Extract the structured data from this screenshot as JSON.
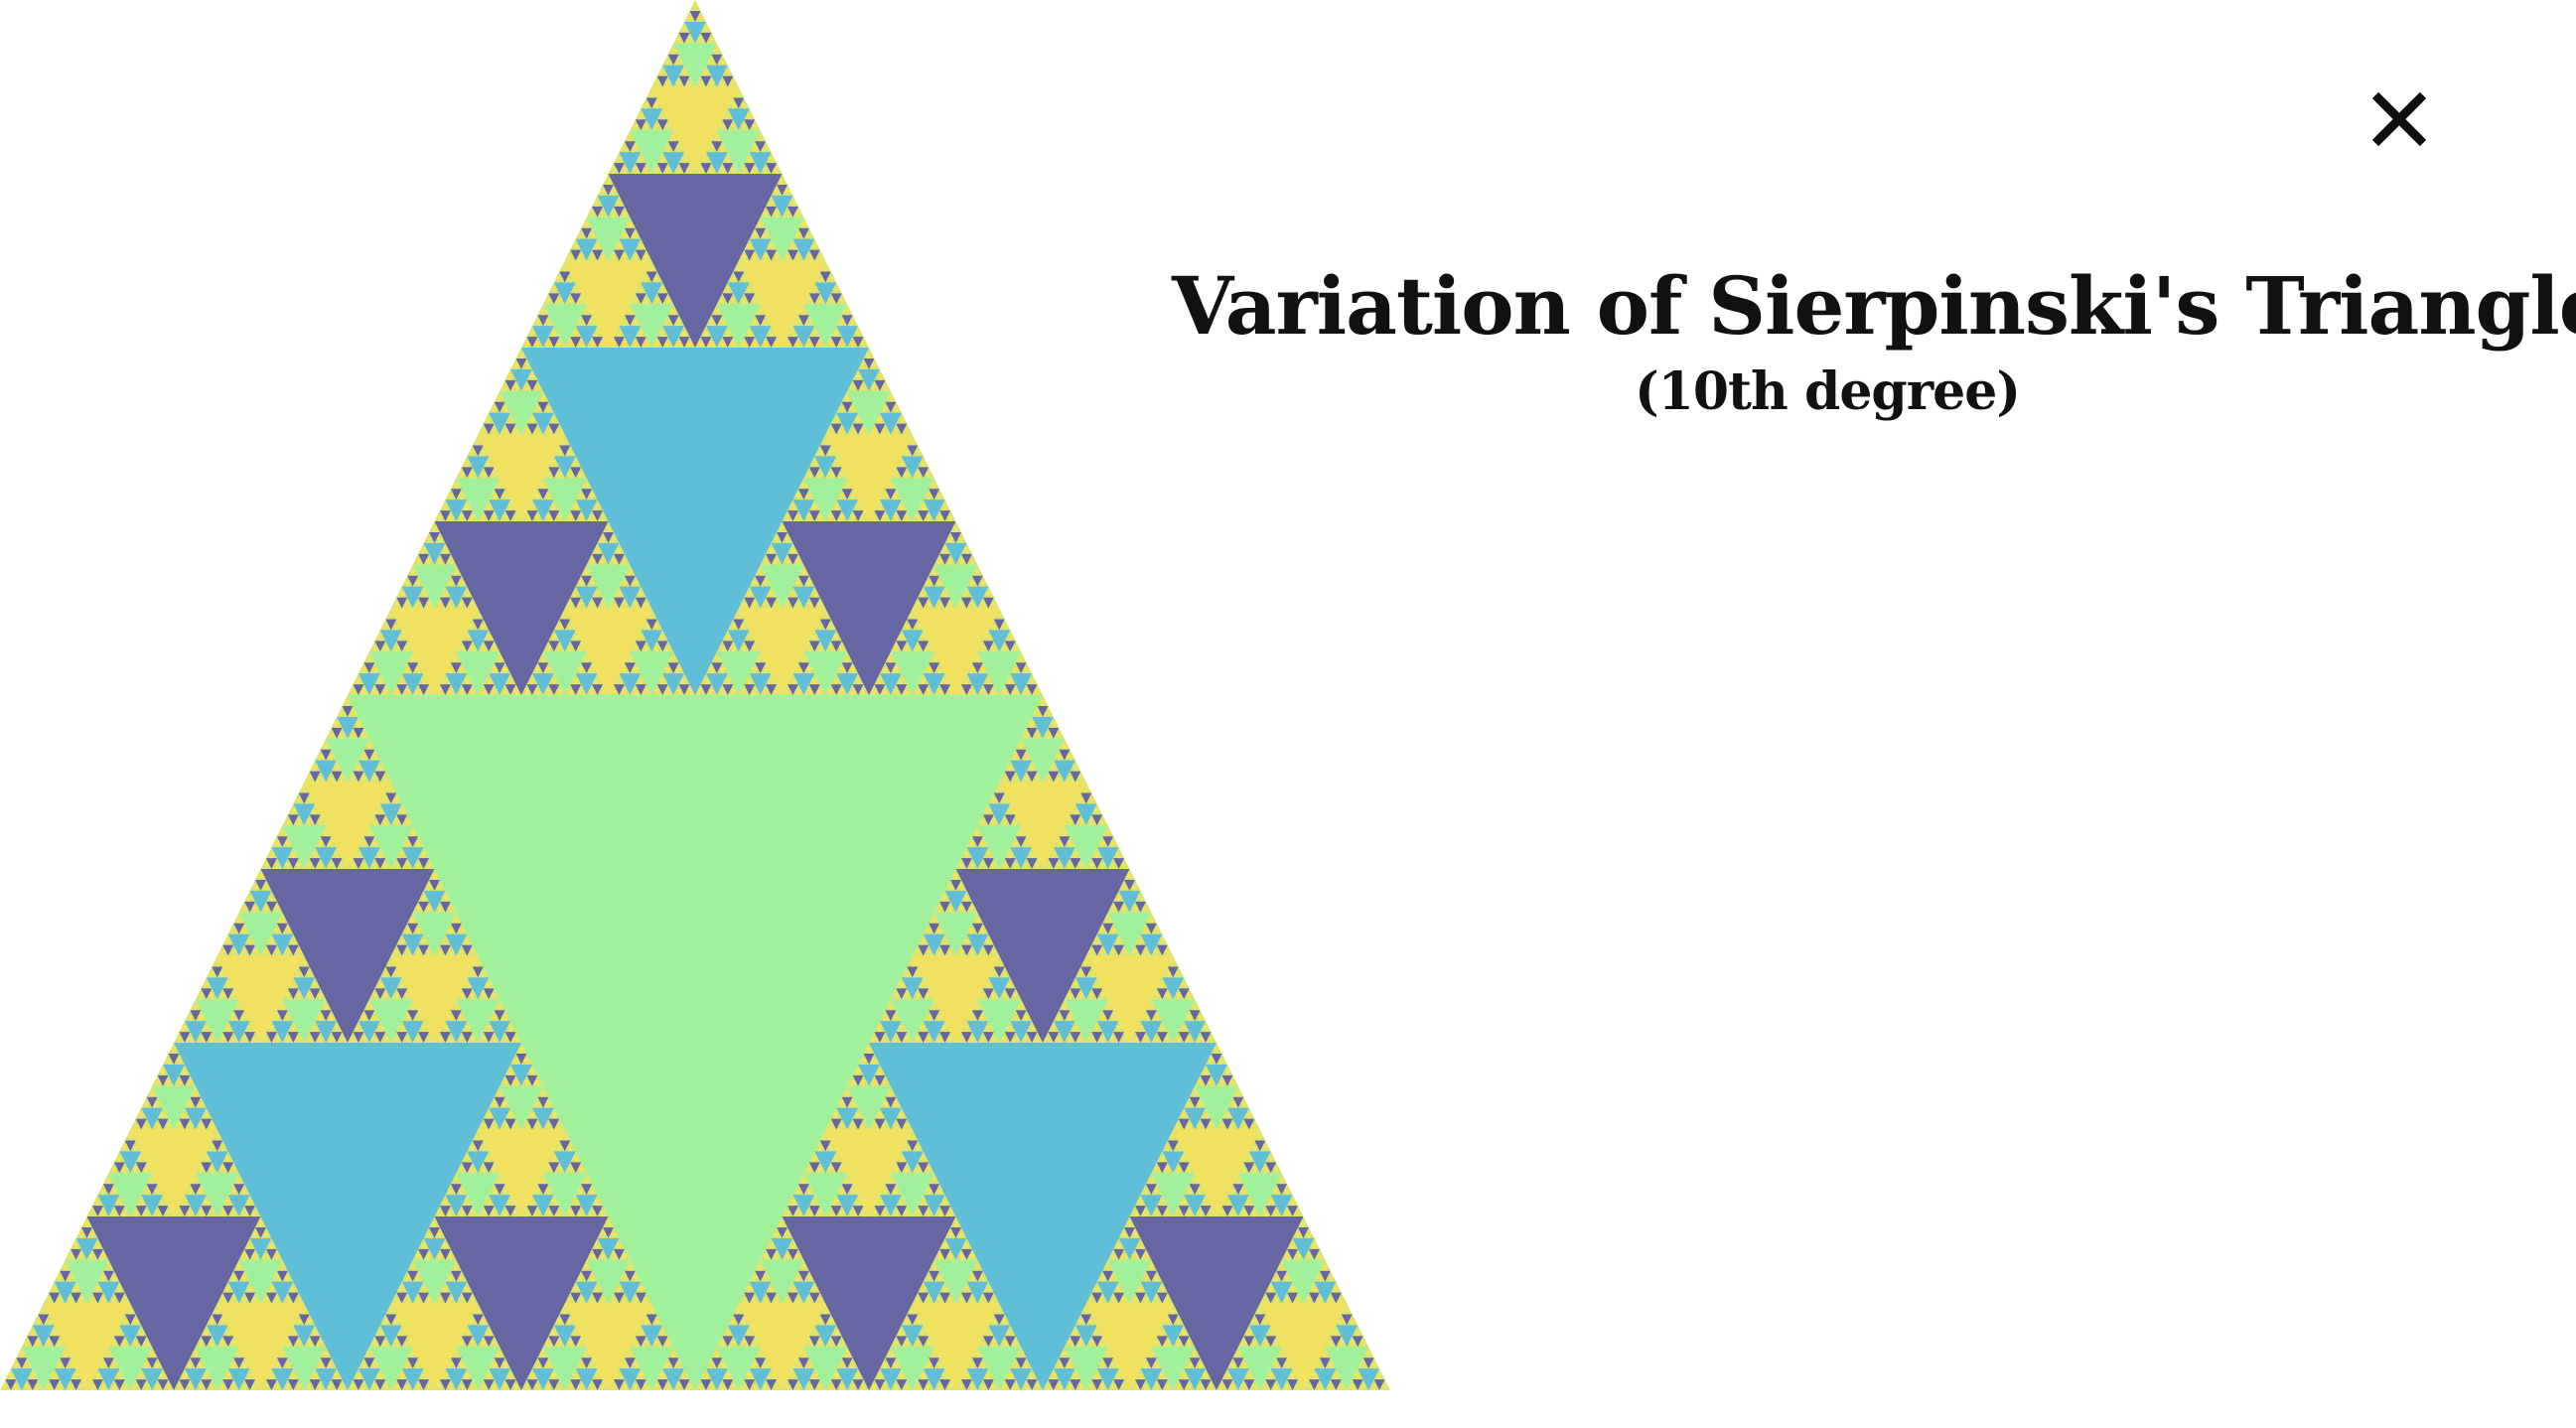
{
  "title": "Variation of Sierpinski's Triangle",
  "subtitle": "(10th degree)",
  "close_icon": "close-icon",
  "fractal": {
    "degree": 10,
    "colors": {
      "base": "#F0E260",
      "level_1": "#A0F09C",
      "level_2": "#60BED6",
      "level_3": "#6666A3",
      "level_4": "#F0E260"
    }
  }
}
